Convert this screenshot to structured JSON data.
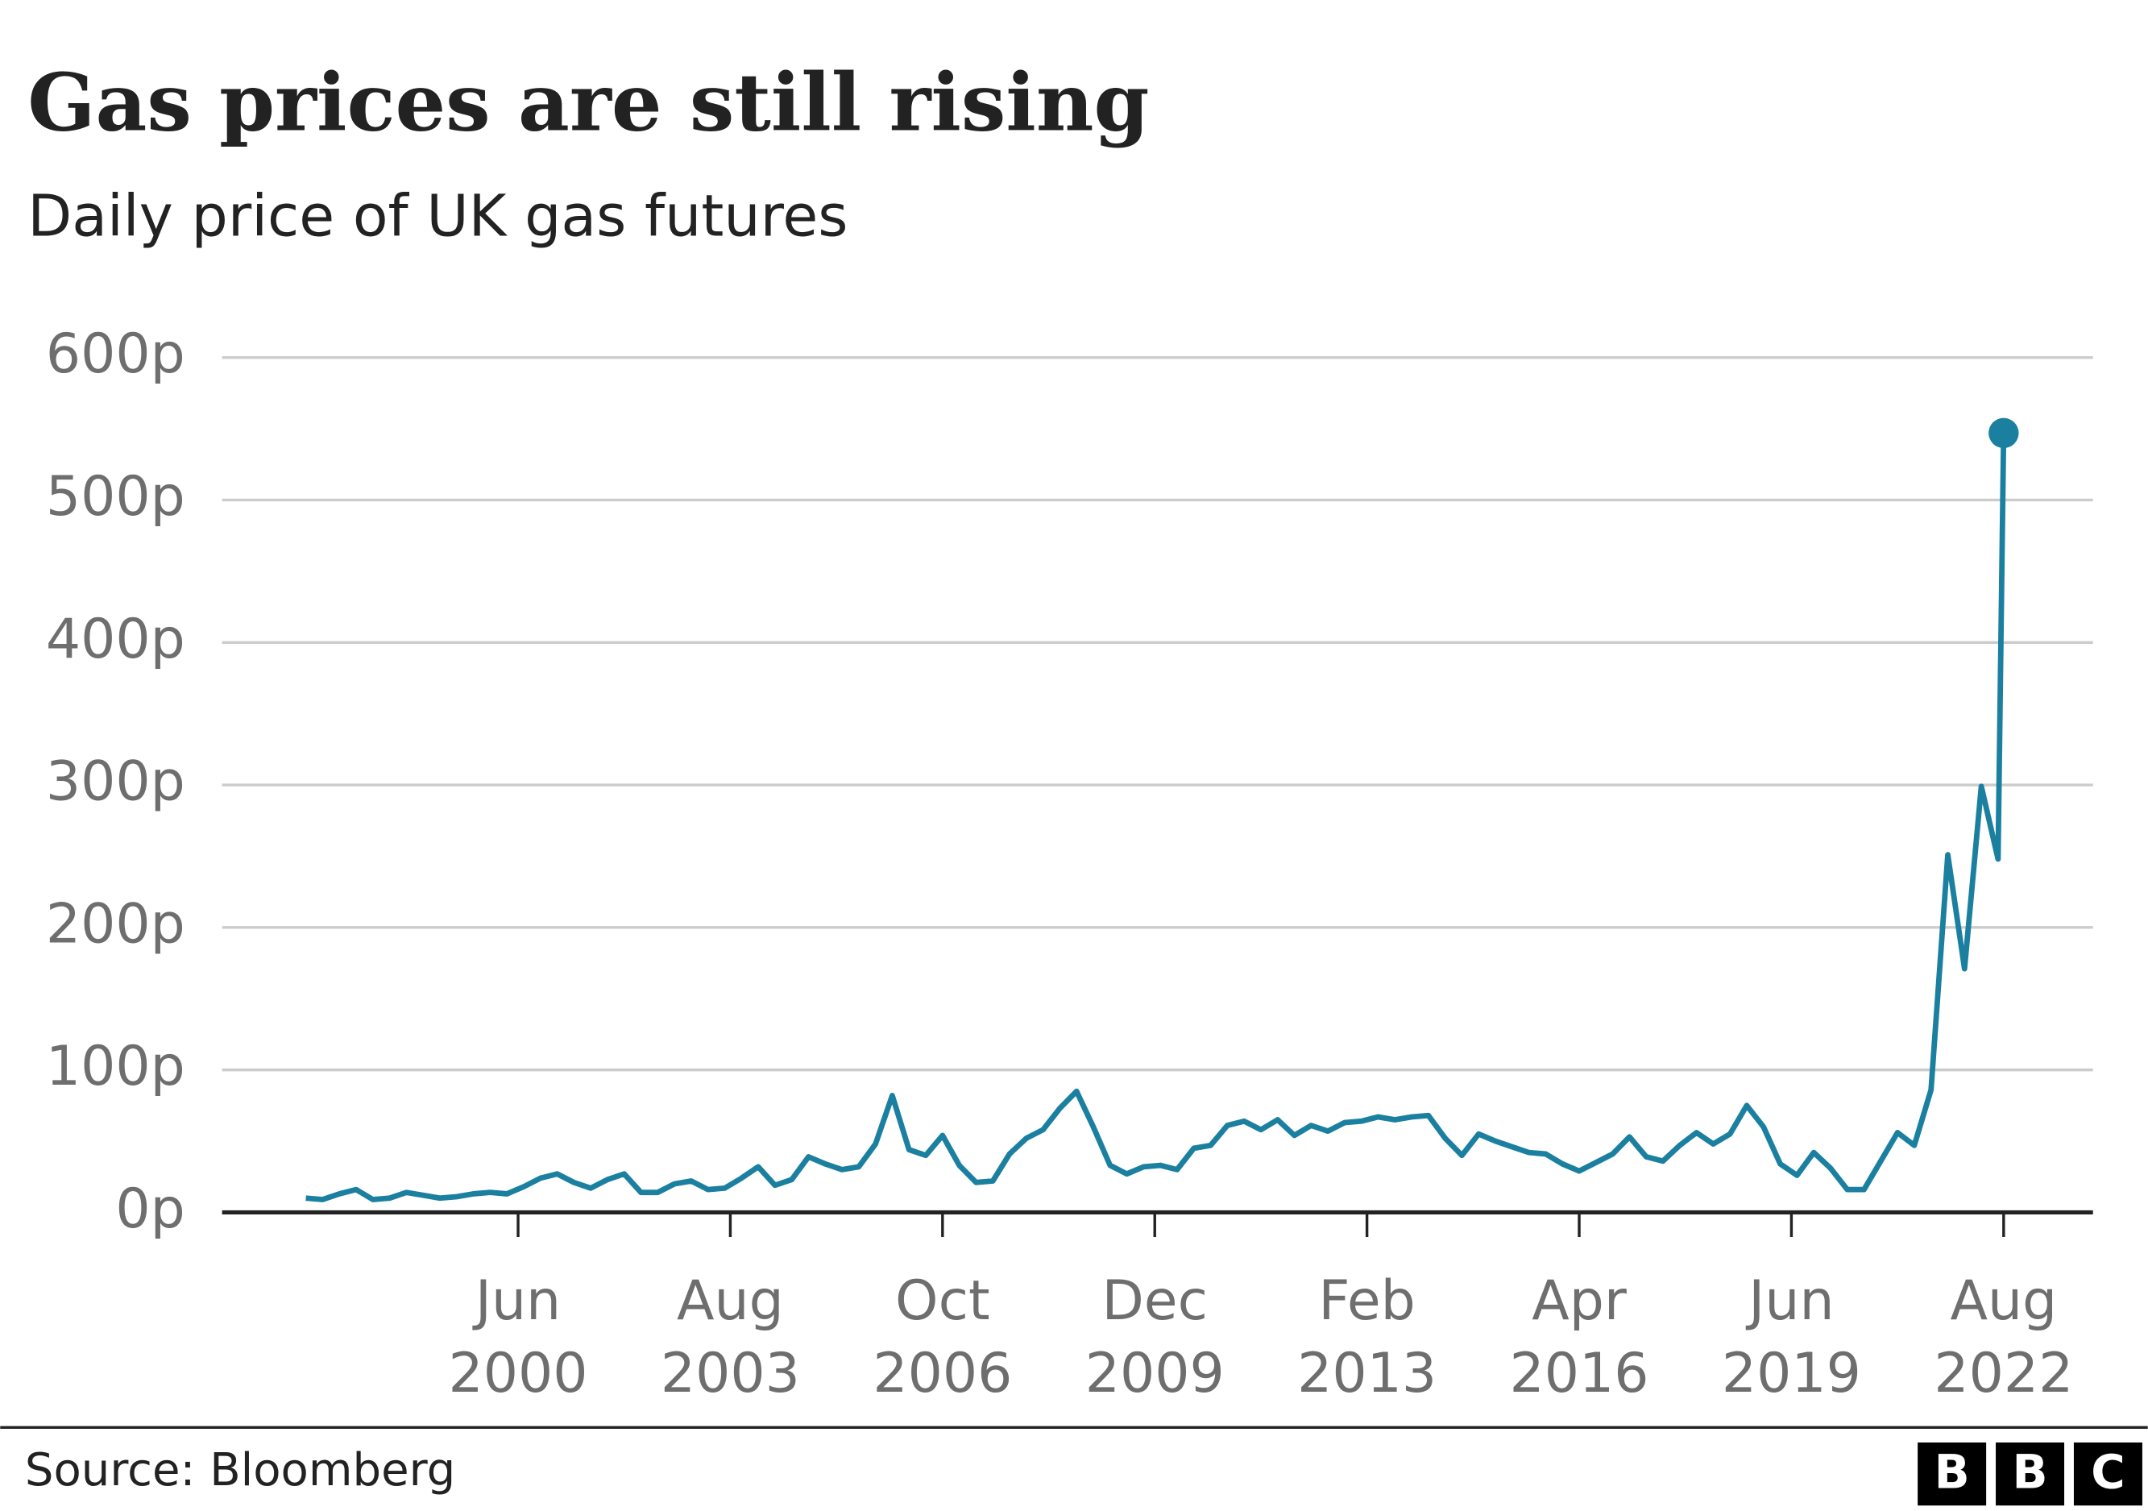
{
  "chart_data": {
    "type": "line",
    "title": "Gas prices are still rising",
    "subtitle": "Daily price of UK gas futures",
    "source": "Source: Bloomberg",
    "logo": "BBC",
    "color": "#1b80a0",
    "grid": true,
    "x": [
      "1997-04",
      "1997-07",
      "1997-10",
      "1998-01",
      "1998-04",
      "1998-07",
      "1998-10",
      "1999-01",
      "1999-04",
      "1999-07",
      "1999-10",
      "2000-01",
      "2000-04",
      "2000-07",
      "2000-10",
      "2001-01",
      "2001-04",
      "2001-07",
      "2001-10",
      "2002-01",
      "2002-04",
      "2002-07",
      "2002-10",
      "2003-01",
      "2003-04",
      "2003-07",
      "2003-10",
      "2004-01",
      "2004-04",
      "2004-07",
      "2004-10",
      "2005-01",
      "2005-04",
      "2005-07",
      "2005-10",
      "2006-01",
      "2006-04",
      "2006-07",
      "2006-10",
      "2007-01",
      "2007-04",
      "2007-07",
      "2007-10",
      "2008-01",
      "2008-04",
      "2008-07",
      "2008-10",
      "2009-01",
      "2009-04",
      "2009-07",
      "2009-10",
      "2010-01",
      "2010-04",
      "2010-07",
      "2010-10",
      "2011-01",
      "2011-04",
      "2011-07",
      "2011-10",
      "2012-01",
      "2012-04",
      "2012-07",
      "2012-10",
      "2013-01",
      "2013-04",
      "2013-07",
      "2013-10",
      "2014-01",
      "2014-04",
      "2014-07",
      "2014-10",
      "2015-01",
      "2015-04",
      "2015-07",
      "2015-10",
      "2016-01",
      "2016-04",
      "2016-07",
      "2016-10",
      "2017-01",
      "2017-04",
      "2017-07",
      "2017-10",
      "2018-01",
      "2018-04",
      "2018-07",
      "2018-10",
      "2019-01",
      "2019-04",
      "2019-07",
      "2019-10",
      "2020-01",
      "2020-04",
      "2020-07",
      "2020-10",
      "2021-01",
      "2021-04",
      "2021-07",
      "2021-10",
      "2022-01",
      "2022-04",
      "2022-07",
      "2022-08"
    ],
    "values": [
      10,
      9,
      13,
      16,
      9,
      10,
      14,
      12,
      10,
      11,
      13,
      14,
      13,
      18,
      24,
      27,
      21,
      17,
      23,
      27,
      14,
      14,
      20,
      22,
      16,
      17,
      24,
      32,
      19,
      23,
      39,
      34,
      30,
      32,
      48,
      82,
      44,
      40,
      54,
      33,
      21,
      22,
      41,
      52,
      58,
      73,
      85,
      60,
      33,
      27,
      32,
      33,
      30,
      45,
      47,
      61,
      64,
      58,
      65,
      54,
      61,
      57,
      63,
      64,
      67,
      65,
      67,
      68,
      52,
      40,
      55,
      50,
      46,
      42,
      41,
      34,
      29,
      35,
      41,
      53,
      39,
      36,
      47,
      56,
      48,
      55,
      75,
      60,
      34,
      26,
      42,
      31,
      16,
      16,
      36,
      56,
      47,
      86,
      251,
      171,
      299,
      248,
      547
    ],
    "xlim": [
      "1996-01",
      "2023-12"
    ],
    "xticks": [
      {
        "value": "2000-06",
        "label": "Jun 2000"
      },
      {
        "value": "2003-08",
        "label": "Aug 2003"
      },
      {
        "value": "2006-10",
        "label": "Oct 2006"
      },
      {
        "value": "2009-12",
        "label": "Dec 2009"
      },
      {
        "value": "2013-02",
        "label": "Feb 2013"
      },
      {
        "value": "2016-04",
        "label": "Apr 2016"
      },
      {
        "value": "2019-06",
        "label": "Jun 2019"
      },
      {
        "value": "2022-08",
        "label": "Aug 2022"
      }
    ],
    "ylim": [
      0,
      600
    ],
    "yticks": [
      {
        "value": 0,
        "label": "0p"
      },
      {
        "value": 100,
        "label": "100p"
      },
      {
        "value": 200,
        "label": "200p"
      },
      {
        "value": 300,
        "label": "300p"
      },
      {
        "value": 400,
        "label": "400p"
      },
      {
        "value": 500,
        "label": "500p"
      },
      {
        "value": 600,
        "label": "600p"
      }
    ]
  }
}
